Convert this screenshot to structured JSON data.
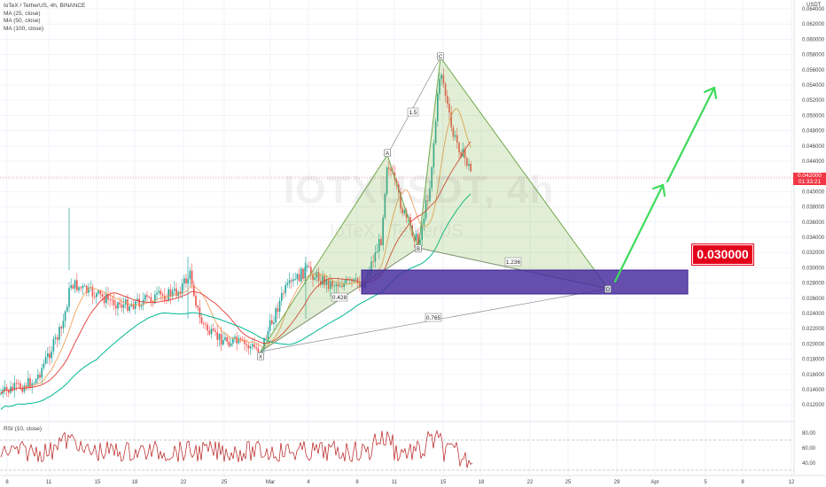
{
  "chart": {
    "symbol": "IoTeX / TetherUS, 4h, BINANCE",
    "indicators": [
      "MA (25, close)",
      "MA (50, close)",
      "MA (100, close)"
    ],
    "rsi_label": "RSI (10, close)",
    "currency": "USDT",
    "watermark": "IOTXUSDT, 4h",
    "watermark_sub": "IoTeX / TetherUS",
    "current_price": "0.042000",
    "countdown": "01:33:21",
    "target_label": "0.030000",
    "y_axis_labels": [
      "0.064000",
      "0.062000",
      "0.060000",
      "0.058000",
      "0.056000",
      "0.054000",
      "0.052000",
      "0.050000",
      "0.048000",
      "0.046000",
      "0.044000",
      "0.042000",
      "0.040000",
      "0.038000",
      "0.036000",
      "0.034000",
      "0.032000",
      "0.030000",
      "0.028000",
      "0.026000",
      "0.024000",
      "0.022000",
      "0.020000",
      "0.018000",
      "0.016000",
      "0.014000",
      "0.012000"
    ],
    "rsi_axis_labels": [
      "80.00",
      "60.00",
      "40.00"
    ],
    "x_axis_labels": [
      "8",
      "11",
      "15",
      "18",
      "22",
      "25",
      "Mar",
      "4",
      "8",
      "11",
      "15",
      "18",
      "22",
      "25",
      "29",
      "Apr",
      "5",
      "8",
      "12"
    ],
    "pattern_points": [
      "X",
      "A",
      "B",
      "C",
      "D"
    ],
    "ratios": [
      "1.5",
      "0.428",
      "1.236",
      "0.765"
    ],
    "colors": {
      "up": "#26a69a",
      "down": "#ef5350",
      "ma25": "#f5a15a",
      "ma50": "#e53935",
      "ma100": "#00b894",
      "pattern": "#7cb342",
      "zone": "#4a2fa0",
      "arrow": "#3ddc5a",
      "target": "#e3001b"
    }
  }
}
